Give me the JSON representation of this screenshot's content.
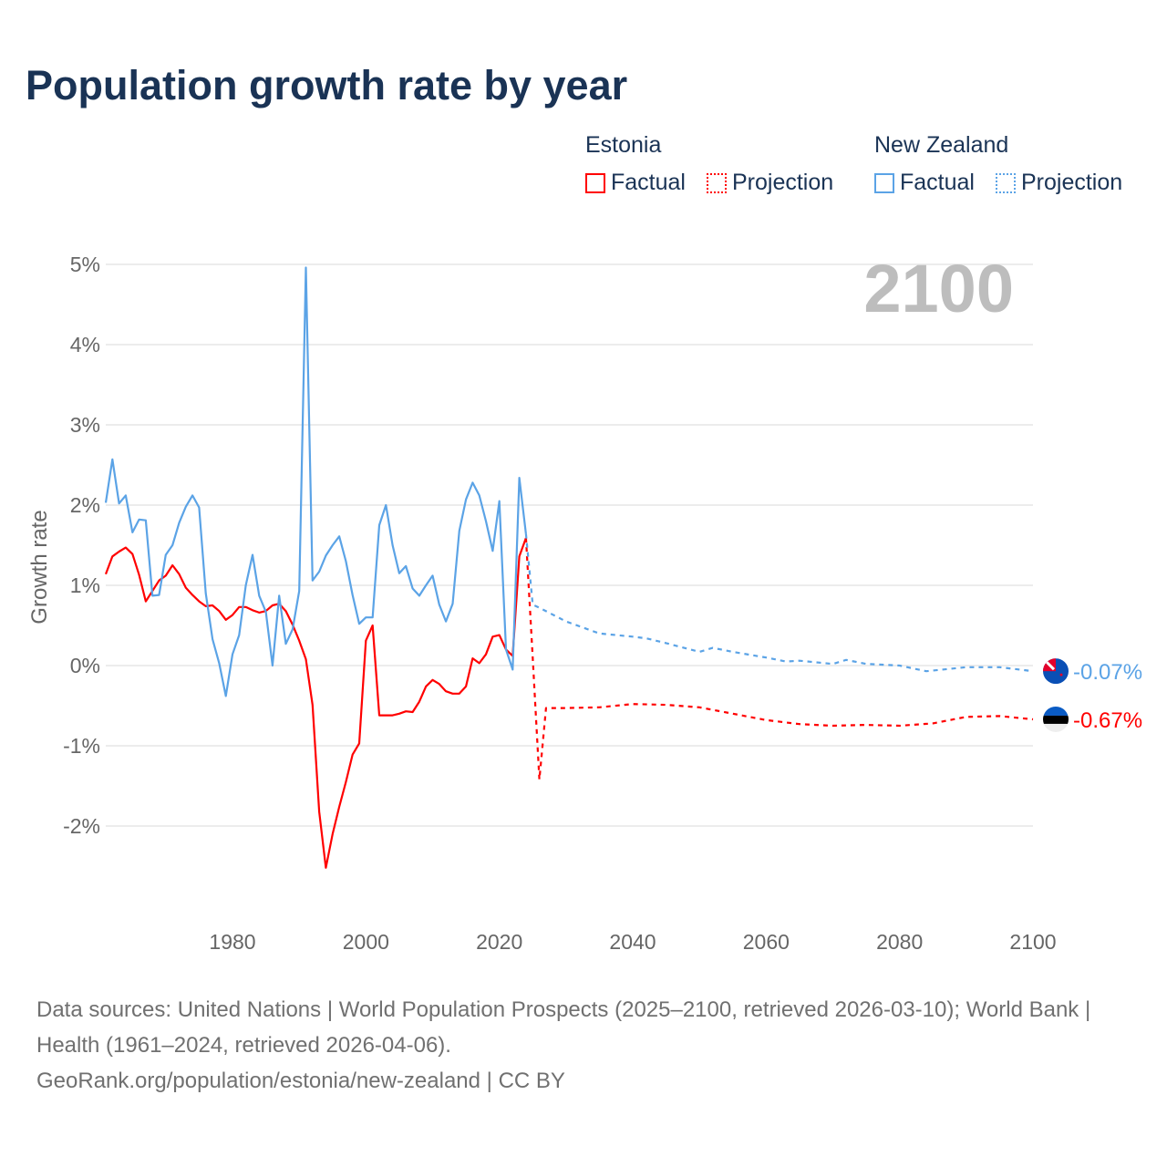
{
  "title": "Population growth rate by year",
  "legend": {
    "groups": [
      {
        "name": "Estonia",
        "color": "#ff0000",
        "items": [
          "Factual",
          "Projection"
        ]
      },
      {
        "name": "New Zealand",
        "color": "#5ba3e6",
        "items": [
          "Factual",
          "Projection"
        ]
      }
    ]
  },
  "current_year_label": "2100",
  "footer": {
    "sources": "Data sources: United Nations | World Population Prospects (2025–2100, retrieved 2026-03-10); World Bank | Health (1961–2024, retrieved 2026-04-06).",
    "link": "GeoRank.org/population/estonia/new-zealand | CC BY"
  },
  "chart_data": {
    "type": "line",
    "title": "Population growth rate by year",
    "xlabel": "",
    "ylabel": "Growth rate",
    "xlim": [
      1961,
      2100
    ],
    "ylim": [
      -3,
      5
    ],
    "x_ticks": [
      "1980",
      "2000",
      "2020",
      "2040",
      "2060",
      "2080",
      "2100"
    ],
    "y_ticks": [
      "5%",
      "4%",
      "3%",
      "2%",
      "1%",
      "0%",
      "-1%",
      "-2%"
    ],
    "grid": true,
    "series": [
      {
        "name": "Estonia Factual",
        "color": "#ff0000",
        "style": "solid",
        "x": [
          1961,
          1962,
          1963,
          1964,
          1965,
          1966,
          1967,
          1968,
          1969,
          1970,
          1971,
          1972,
          1973,
          1974,
          1975,
          1976,
          1977,
          1978,
          1979,
          1980,
          1981,
          1982,
          1983,
          1984,
          1985,
          1986,
          1987,
          1988,
          1989,
          1990,
          1991,
          1992,
          1993,
          1994,
          1995,
          1996,
          1997,
          1998,
          1999,
          2000,
          2001,
          2002,
          2003,
          2004,
          2005,
          2006,
          2007,
          2008,
          2009,
          2010,
          2011,
          2012,
          2013,
          2014,
          2015,
          2016,
          2017,
          2018,
          2019,
          2020,
          2021,
          2022,
          2023,
          2024
        ],
        "y": [
          1.14,
          1.36,
          1.42,
          1.47,
          1.39,
          1.13,
          0.8,
          0.93,
          1.06,
          1.12,
          1.25,
          1.14,
          0.97,
          0.88,
          0.8,
          0.74,
          0.75,
          0.68,
          0.57,
          0.63,
          0.73,
          0.73,
          0.69,
          0.66,
          0.68,
          0.75,
          0.77,
          0.68,
          0.51,
          0.31,
          0.08,
          -0.49,
          -1.82,
          -2.52,
          -2.1,
          -1.76,
          -1.45,
          -1.11,
          -0.97,
          0.31,
          0.5,
          -0.62,
          -0.62,
          -0.62,
          -0.6,
          -0.57,
          -0.58,
          -0.45,
          -0.26,
          -0.18,
          -0.23,
          -0.32,
          -0.35,
          -0.35,
          -0.26,
          0.09,
          0.03,
          0.14,
          0.36,
          0.38,
          0.2,
          0.12,
          1.36,
          1.59
        ]
      },
      {
        "name": "Estonia Projection",
        "color": "#ff0000",
        "style": "dotted",
        "x": [
          2024,
          2025,
          2026,
          2027,
          2030,
          2035,
          2040,
          2045,
          2050,
          2055,
          2060,
          2065,
          2070,
          2075,
          2080,
          2085,
          2090,
          2095,
          2100
        ],
        "y": [
          1.59,
          0.1,
          -1.42,
          -0.53,
          -0.53,
          -0.52,
          -0.48,
          -0.49,
          -0.52,
          -0.6,
          -0.68,
          -0.73,
          -0.75,
          -0.74,
          -0.75,
          -0.72,
          -0.64,
          -0.63,
          -0.67
        ]
      },
      {
        "name": "New Zealand Factual",
        "color": "#5ba3e6",
        "style": "solid",
        "x": [
          1961,
          1962,
          1963,
          1964,
          1965,
          1966,
          1967,
          1968,
          1969,
          1970,
          1971,
          1972,
          1973,
          1974,
          1975,
          1976,
          1977,
          1978,
          1979,
          1980,
          1981,
          1982,
          1983,
          1984,
          1985,
          1986,
          1987,
          1988,
          1989,
          1990,
          1991,
          1992,
          1993,
          1994,
          1995,
          1996,
          1997,
          1998,
          1999,
          2000,
          2001,
          2002,
          2003,
          2004,
          2005,
          2006,
          2007,
          2008,
          2009,
          2010,
          2011,
          2012,
          2013,
          2014,
          2015,
          2016,
          2017,
          2018,
          2019,
          2020,
          2021,
          2022,
          2023,
          2024
        ],
        "y": [
          2.03,
          2.57,
          2.02,
          2.12,
          1.66,
          1.82,
          1.81,
          0.87,
          0.88,
          1.38,
          1.5,
          1.78,
          1.98,
          2.12,
          1.97,
          0.9,
          0.33,
          0.03,
          -0.38,
          0.14,
          0.38,
          1.0,
          1.38,
          0.87,
          0.67,
          0.0,
          0.87,
          0.27,
          0.45,
          0.93,
          4.96,
          1.06,
          1.17,
          1.37,
          1.5,
          1.61,
          1.3,
          0.88,
          0.52,
          0.6,
          0.6,
          1.75,
          2.0,
          1.5,
          1.15,
          1.24,
          0.96,
          0.87,
          1.0,
          1.12,
          0.76,
          0.55,
          0.77,
          1.68,
          2.07,
          2.28,
          2.12,
          1.8,
          1.43,
          2.05,
          0.2,
          -0.05,
          2.34,
          1.64
        ]
      },
      {
        "name": "New Zealand Projection",
        "color": "#5ba3e6",
        "style": "dotted",
        "x": [
          2024,
          2025,
          2026,
          2030,
          2035,
          2040,
          2042,
          2045,
          2050,
          2052,
          2055,
          2060,
          2063,
          2065,
          2070,
          2072,
          2075,
          2080,
          2084,
          2090,
          2095,
          2100
        ],
        "y": [
          1.64,
          0.76,
          0.72,
          0.55,
          0.4,
          0.36,
          0.34,
          0.28,
          0.17,
          0.22,
          0.17,
          0.1,
          0.05,
          0.06,
          0.02,
          0.07,
          0.02,
          0.0,
          -0.07,
          -0.02,
          -0.02,
          -0.07
        ]
      }
    ],
    "end_labels": [
      {
        "country": "New Zealand",
        "value": -0.07,
        "text": "-0.07%",
        "color": "#5ba3e6"
      },
      {
        "country": "Estonia",
        "value": -0.67,
        "text": "-0.67%",
        "color": "#ff0000"
      }
    ]
  }
}
